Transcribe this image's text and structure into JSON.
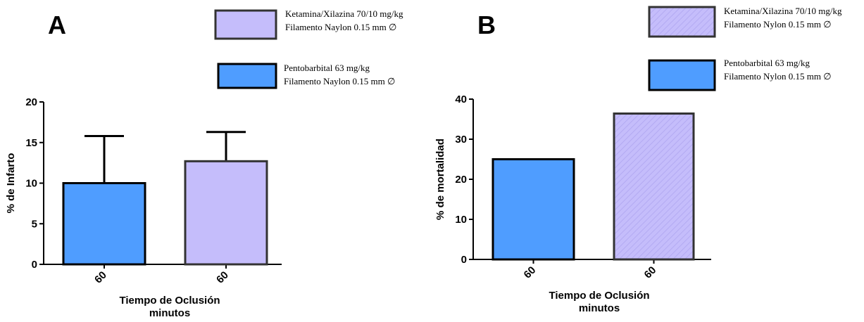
{
  "chart_data": [
    {
      "type": "bar",
      "panel": "A",
      "ylabel": "% de Infarto",
      "xlabel": [
        "Tiempo de Oclusión",
        "minutos"
      ],
      "categories": [
        "60",
        "60"
      ],
      "ylim": [
        0,
        20
      ],
      "yticks": [
        0,
        5,
        10,
        15,
        20
      ],
      "series": [
        {
          "name": [
            "Pentobarbital 63 mg/kg",
            "Filamento Naylon 0.15 mm ∅"
          ],
          "color": "#4f9dff",
          "values": [
            10.0,
            null
          ],
          "errors": [
            5.8,
            null
          ]
        },
        {
          "name": [
            "Ketamina/Xilazina 70/10 mg/kg",
            "Filamento Naylon 0.15 mm ∅"
          ],
          "color": "#c5bdfb",
          "values": [
            null,
            12.7
          ],
          "errors": [
            null,
            3.6
          ]
        }
      ]
    },
    {
      "type": "bar",
      "panel": "B",
      "ylabel": "% de mortalidad",
      "xlabel": [
        "Tiempo de Oclusión",
        "minutos"
      ],
      "categories": [
        "60",
        "60"
      ],
      "ylim": [
        0,
        40
      ],
      "yticks": [
        0,
        10,
        20,
        30,
        40
      ],
      "series": [
        {
          "name": [
            "Pentobarbital 63 mg/kg",
            "Filamento Nylon 0.15 mm ∅"
          ],
          "color": "#4f9dff",
          "values": [
            25.0,
            null
          ]
        },
        {
          "name": [
            "Ketamina/Xilazina 70/10 mg/kg",
            "Filamento Nylon 0.15 mm ∅"
          ],
          "color": "#c5bdfb",
          "pattern": "hatch",
          "values": [
            null,
            36.4
          ]
        }
      ]
    }
  ]
}
